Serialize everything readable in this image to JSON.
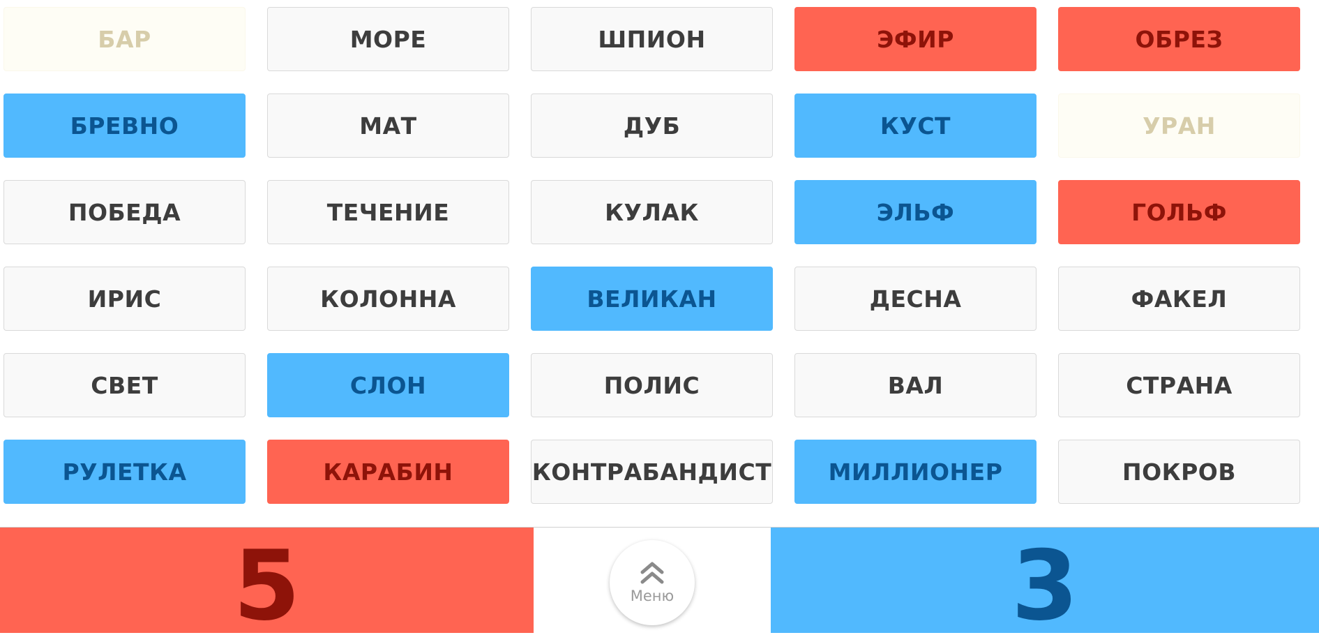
{
  "board": {
    "cards": [
      {
        "word": "БАР",
        "team": "assassin"
      },
      {
        "word": "МОРЕ",
        "team": "neutral"
      },
      {
        "word": "ШПИОН",
        "team": "neutral"
      },
      {
        "word": "ЭФИР",
        "team": "red"
      },
      {
        "word": "ОБРЕЗ",
        "team": "red"
      },
      {
        "word": "БРЕВНО",
        "team": "blue"
      },
      {
        "word": "МАТ",
        "team": "neutral"
      },
      {
        "word": "ДУБ",
        "team": "neutral"
      },
      {
        "word": "КУСТ",
        "team": "blue"
      },
      {
        "word": "УРАН",
        "team": "assassin"
      },
      {
        "word": "ПОБЕДА",
        "team": "neutral"
      },
      {
        "word": "ТЕЧЕНИЕ",
        "team": "neutral"
      },
      {
        "word": "КУЛАК",
        "team": "neutral"
      },
      {
        "word": "ЭЛЬФ",
        "team": "blue"
      },
      {
        "word": "ГОЛЬФ",
        "team": "red"
      },
      {
        "word": "ИРИС",
        "team": "neutral"
      },
      {
        "word": "КОЛОННА",
        "team": "neutral"
      },
      {
        "word": "ВЕЛИКАН",
        "team": "blue"
      },
      {
        "word": "ДЕСНА",
        "team": "neutral"
      },
      {
        "word": "ФАКЕЛ",
        "team": "neutral"
      },
      {
        "word": "СВЕТ",
        "team": "neutral"
      },
      {
        "word": "СЛОН",
        "team": "blue"
      },
      {
        "word": "ПОЛИС",
        "team": "neutral"
      },
      {
        "word": "ВАЛ",
        "team": "neutral"
      },
      {
        "word": "СТРАНА",
        "team": "neutral"
      },
      {
        "word": "РУЛЕТКА",
        "team": "blue"
      },
      {
        "word": "КАРАБИН",
        "team": "red"
      },
      {
        "word": "КОНТРАБАНДИСТ",
        "team": "neutral"
      },
      {
        "word": "МИЛЛИОНЕР",
        "team": "blue"
      },
      {
        "word": "ПОКРОВ",
        "team": "neutral"
      }
    ]
  },
  "score": {
    "red": "5",
    "blue": "3"
  },
  "menu": {
    "label": "Меню",
    "icon": "double-chevron-up-icon"
  },
  "colors": {
    "red_bg": "#ff6452",
    "red_text": "#8e1309",
    "blue_bg": "#51b9fe",
    "blue_text": "#0b5591",
    "neutral_bg": "#f9f9f9",
    "neutral_text": "#3d3d3d",
    "assassin_bg": "#fefdf5",
    "assassin_text": "#d7cdaa"
  }
}
